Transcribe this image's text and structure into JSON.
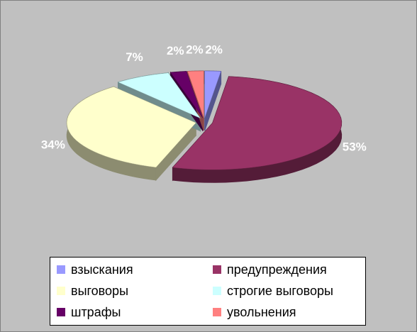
{
  "chart_data": {
    "type": "pie",
    "categories": [
      "взыскания",
      "предупреждения",
      "выговоры",
      "строгие выговоры",
      "штрафы",
      "увольнения"
    ],
    "values": [
      2,
      53,
      34,
      7,
      2,
      2
    ],
    "value_labels": [
      "2%",
      "53%",
      "34%",
      "7%",
      "2%",
      "2%"
    ],
    "colors": [
      "#9999ff",
      "#993366",
      "#ffffcc",
      "#ccffff",
      "#660066",
      "#ff8080"
    ],
    "legend": "bottom"
  }
}
